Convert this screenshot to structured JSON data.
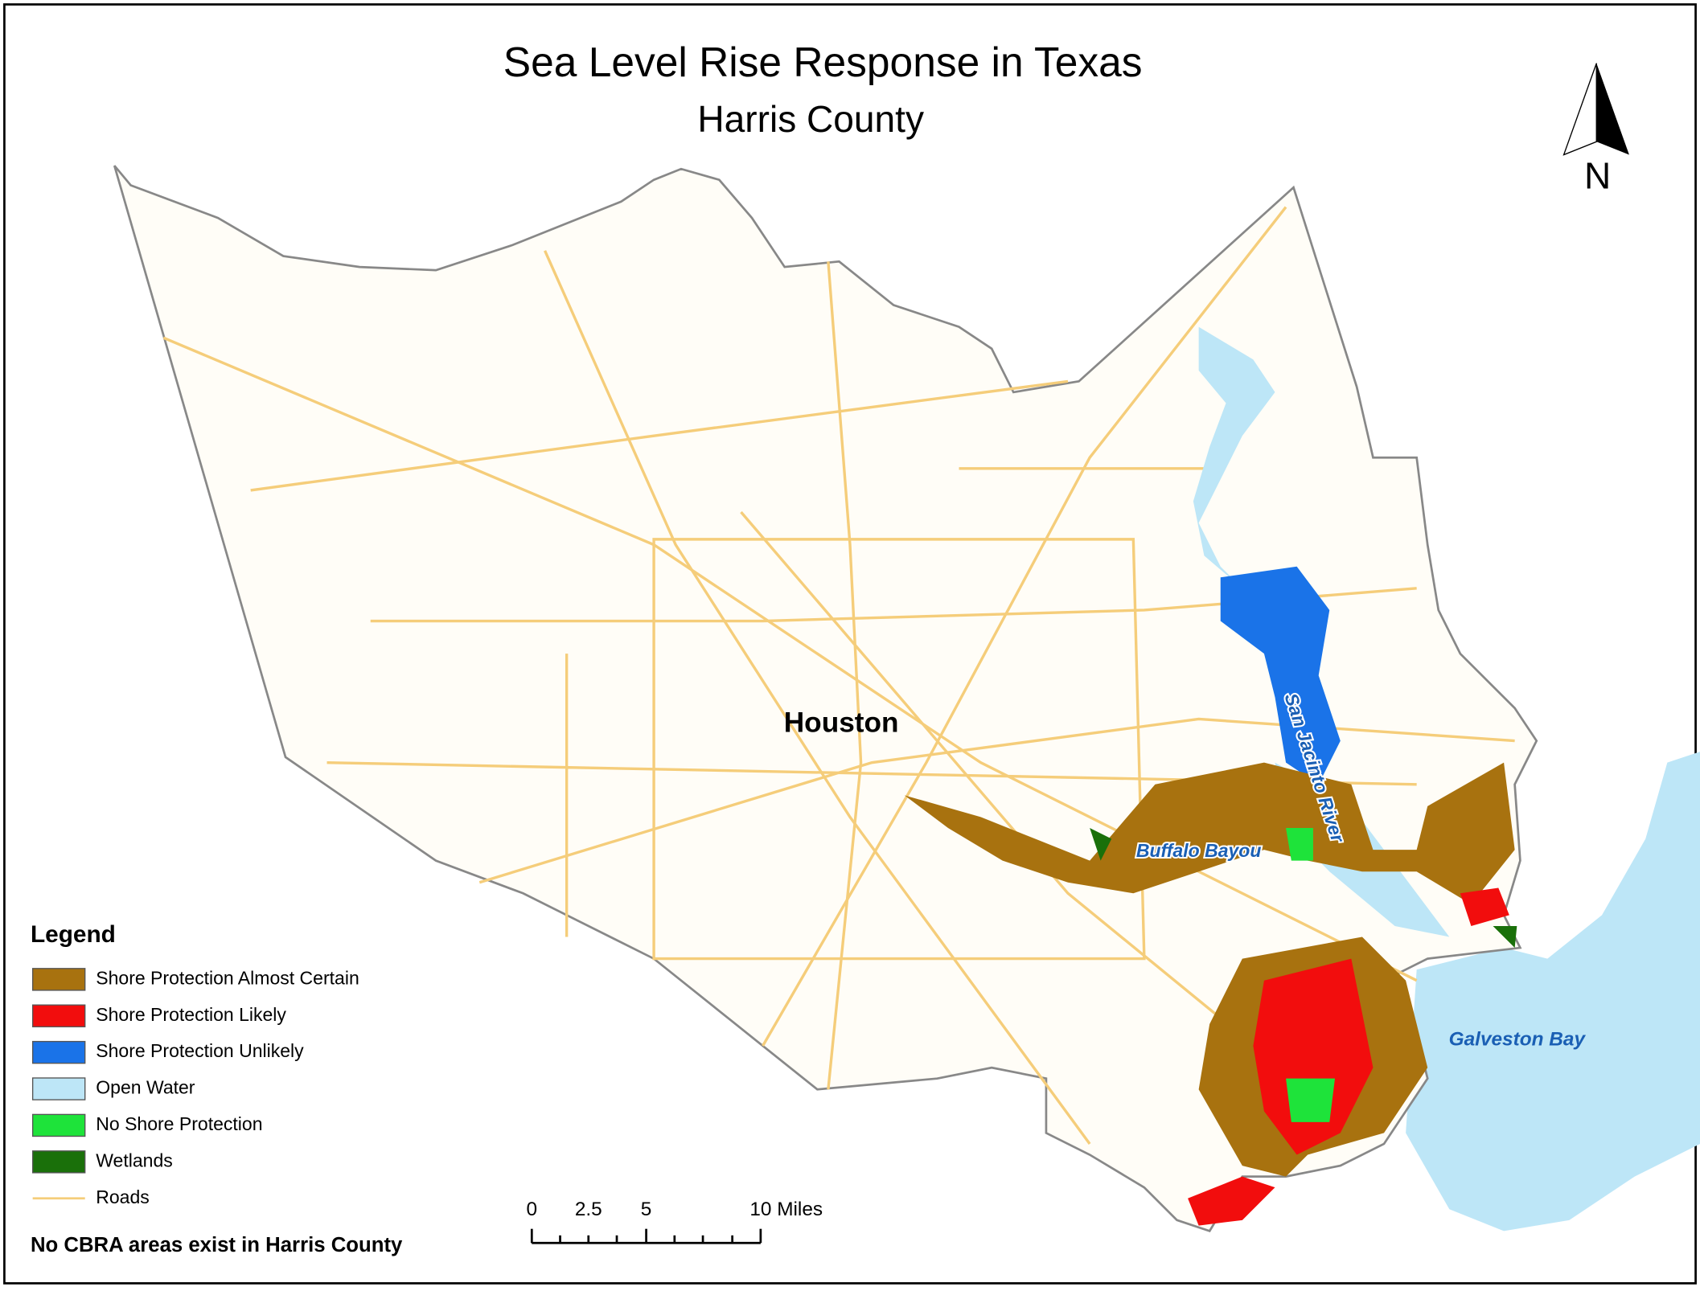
{
  "header": {
    "title": "Sea Level Rise Response in Texas",
    "subtitle": "Harris County"
  },
  "north_arrow": {
    "label": "N"
  },
  "map_labels": {
    "city": "Houston",
    "bayou": "Buffalo Bayou",
    "river": "San Jacinto River",
    "bay": "Galveston Bay"
  },
  "legend": {
    "title": "Legend",
    "items": [
      {
        "label": "Shore Protection Almost Certain",
        "color": "#a8720f"
      },
      {
        "label": "Shore Protection Likely",
        "color": "#f20d0d"
      },
      {
        "label": "Shore Protection Unlikely",
        "color": "#1a73e8"
      },
      {
        "label": "Open Water",
        "color": "#bde6f7"
      },
      {
        "label": "No Shore Protection",
        "color": "#1ee33a"
      },
      {
        "label": "Wetlands",
        "color": "#1a700a"
      },
      {
        "label": "Roads",
        "color": "#f5cd7a"
      }
    ]
  },
  "scale_bar": {
    "labels": [
      "0",
      "2.5",
      "5",
      "10 Miles"
    ]
  },
  "note": "No CBRA areas exist in Harris County"
}
